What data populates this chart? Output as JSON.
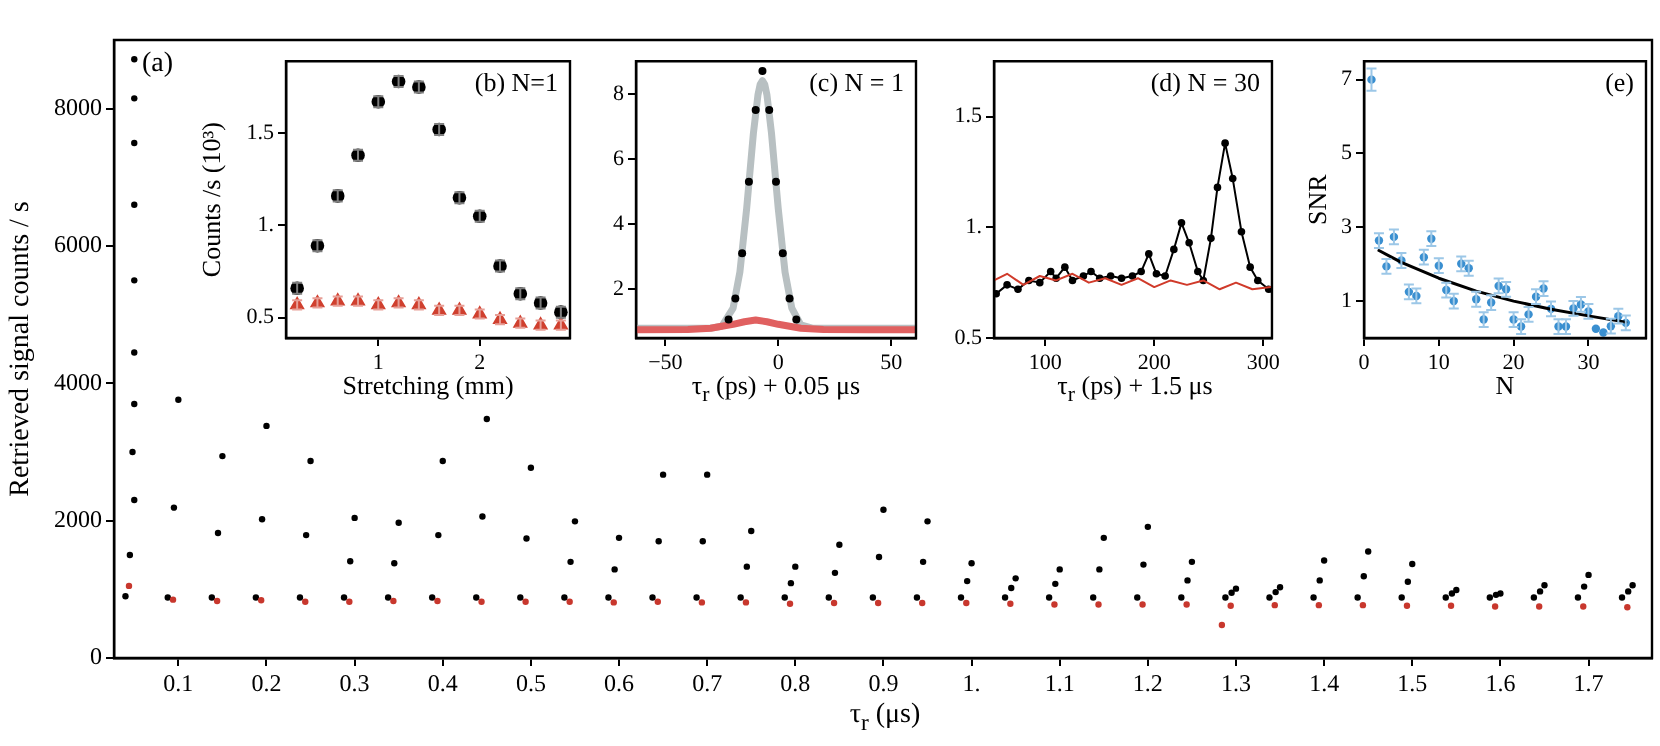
{
  "chart_data": [
    {
      "type": "scatter",
      "xlabel": "τ$_{r}$ (μs)",
      "ylabel": "Retrieved signal counts / s",
      "xlim": [
        0.027,
        1.772
      ],
      "ylim": [
        0,
        9000
      ],
      "xticks": [
        0.1,
        0.2,
        0.3,
        0.4,
        0.5,
        0.6,
        0.7,
        0.8,
        0.9,
        {
          "value": 1,
          "label": "1."
        },
        1.1,
        1.2,
        1.3,
        1.4,
        1.5,
        1.6,
        1.7
      ],
      "yticks": [
        0,
        2000,
        4000,
        6000,
        8000
      ],
      "annotations": [
        "(a)"
      ],
      "series": [
        {
          "color": "#000000",
          "x": [
            0.04,
            0.045,
            0.048,
            0.05,
            0.05,
            0.05,
            0.05,
            0.05,
            0.05,
            0.05,
            0.05,
            0.088,
            0.095,
            0.1,
            0.138,
            0.145,
            0.15,
            0.188,
            0.195,
            0.2,
            0.238,
            0.245,
            0.25,
            0.288,
            0.295,
            0.3,
            0.338,
            0.345,
            0.35,
            0.388,
            0.395,
            0.4,
            0.438,
            0.445,
            0.45,
            0.488,
            0.495,
            0.5,
            0.538,
            0.545,
            0.55,
            0.588,
            0.595,
            0.6,
            0.638,
            0.645,
            0.65,
            0.688,
            0.695,
            0.7,
            0.738,
            0.745,
            0.75,
            0.788,
            0.795,
            0.8,
            0.838,
            0.845,
            0.85,
            0.888,
            0.895,
            0.9,
            0.938,
            0.945,
            0.95,
            0.988,
            0.995,
            1.0,
            1.038,
            1.045,
            1.05,
            1.088,
            1.095,
            1.1,
            1.138,
            1.145,
            1.15,
            1.188,
            1.195,
            1.2,
            1.238,
            1.245,
            1.25,
            1.288,
            1.295,
            1.3,
            1.338,
            1.345,
            1.35,
            1.388,
            1.395,
            1.4,
            1.438,
            1.445,
            1.45,
            1.488,
            1.495,
            1.5,
            1.538,
            1.545,
            1.55,
            1.588,
            1.595,
            1.6,
            1.638,
            1.645,
            1.65,
            1.688,
            1.695,
            1.7,
            1.738,
            1.745,
            1.75
          ],
          "values": [
            900,
            1500,
            3000,
            8720,
            8150,
            7500,
            6600,
            5500,
            4450,
            3700,
            2300,
            880,
            2190,
            3760,
            880,
            1820,
            2940,
            880,
            2020,
            3380,
            880,
            1790,
            2870,
            880,
            1410,
            2040,
            880,
            1380,
            1970,
            880,
            1790,
            2870,
            880,
            2060,
            3480,
            880,
            1740,
            2770,
            880,
            1400,
            1990,
            880,
            1290,
            1750,
            880,
            1700,
            2670,
            880,
            1700,
            2670,
            880,
            1330,
            1850,
            880,
            1090,
            1330,
            880,
            1240,
            1650,
            880,
            1470,
            2160,
            880,
            1400,
            1990,
            880,
            1120,
            1380,
            880,
            1020,
            1160,
            880,
            1080,
            1290,
            880,
            1290,
            1750,
            880,
            1360,
            1910,
            880,
            1130,
            1400,
            880,
            950,
            1010,
            880,
            960,
            1030,
            880,
            1130,
            1420,
            880,
            1190,
            1550,
            880,
            1110,
            1370,
            880,
            940,
            990,
            880,
            920,
            940,
            880,
            970,
            1060,
            880,
            1040,
            1210,
            880,
            970,
            1060
          ]
        },
        {
          "color": "#c8372d",
          "x": [
            0.044,
            0.094,
            0.144,
            0.194,
            0.244,
            0.294,
            0.344,
            0.394,
            0.444,
            0.494,
            0.544,
            0.594,
            0.644,
            0.694,
            0.744,
            0.794,
            0.844,
            0.894,
            0.944,
            0.994,
            1.044,
            1.094,
            1.144,
            1.194,
            1.244,
            1.284,
            1.294,
            1.344,
            1.394,
            1.444,
            1.494,
            1.544,
            1.594,
            1.644,
            1.694,
            1.744
          ],
          "values": [
            1050,
            850,
            830,
            840,
            820,
            820,
            830,
            830,
            820,
            820,
            820,
            810,
            820,
            810,
            810,
            790,
            800,
            800,
            800,
            800,
            790,
            780,
            780,
            780,
            780,
            480,
            760,
            770,
            770,
            770,
            760,
            760,
            750,
            750,
            750,
            740
          ]
        }
      ]
    },
    {
      "type": "scatter",
      "xlabel": "Stretching (mm)",
      "ylabel": "Counts /s (10³)",
      "xlim": [
        0.09,
        2.89
      ],
      "ylim": [
        0.39,
        1.89
      ],
      "xticks": [
        1,
        2
      ],
      "yticks": [
        0.5,
        {
          "value": 1,
          "label": "1."
        },
        1.5
      ],
      "annotations": [
        "(b) N=1"
      ],
      "series": [
        {
          "color": "#000000",
          "marker": "circle",
          "x": [
            0.2,
            0.4,
            0.6,
            0.8,
            1.0,
            1.2,
            1.4,
            1.6,
            1.8,
            2.0,
            2.2,
            2.4,
            2.6,
            2.8
          ],
          "values": [
            0.66,
            0.89,
            1.16,
            1.38,
            1.67,
            1.78,
            1.75,
            1.52,
            1.15,
            1.05,
            0.78,
            0.63,
            0.58,
            0.53
          ],
          "errors": [
            0.03,
            0.03,
            0.03,
            0.03,
            0.03,
            0.03,
            0.03,
            0.03,
            0.03,
            0.03,
            0.03,
            0.03,
            0.03,
            0.03
          ]
        },
        {
          "color": "#d0402f",
          "marker": "triangle",
          "x": [
            0.2,
            0.4,
            0.6,
            0.8,
            1.0,
            1.2,
            1.4,
            1.6,
            1.8,
            2.0,
            2.2,
            2.4,
            2.6,
            2.8
          ],
          "values": [
            0.57,
            0.58,
            0.59,
            0.59,
            0.57,
            0.58,
            0.57,
            0.54,
            0.54,
            0.52,
            0.49,
            0.47,
            0.46,
            0.46
          ],
          "errors": [
            0.025,
            0.025,
            0.025,
            0.025,
            0.025,
            0.025,
            0.025,
            0.025,
            0.025,
            0.025,
            0.025,
            0.025,
            0.025,
            0.025
          ]
        }
      ]
    },
    {
      "type": "scatter",
      "xlabel": "τ$_{r}$ (ps) + 0.05 μs",
      "xlim": [
        -63,
        61
      ],
      "ylim": [
        0.5,
        9
      ],
      "xticks": [
        {
          "value": -50,
          "label": "−50"
        },
        0,
        50
      ],
      "yticks": [
        2,
        4,
        6,
        8
      ],
      "annotations": [
        "(c) N = 1"
      ],
      "series": [
        {
          "type": "line",
          "color": "#b8c0c2",
          "x": [
            -63,
            -30,
            -25,
            -20,
            -17,
            -14,
            -11,
            -9,
            -8,
            -7,
            -6,
            -5,
            -3,
            0,
            3,
            6,
            10,
            15,
            30,
            61
          ],
          "values": [
            0.8,
            0.8,
            0.86,
            1.42,
            2.52,
            4.47,
            6.79,
            7.96,
            8.29,
            8.4,
            8.29,
            7.96,
            6.79,
            4.47,
            2.52,
            1.42,
            0.9,
            0.8,
            0.8,
            0.8
          ]
        },
        {
          "type": "line",
          "color": "#e06060",
          "x": [
            -63,
            -40,
            -30,
            -20,
            -15,
            -10,
            -5,
            0,
            10,
            20,
            40,
            61
          ],
          "values": [
            0.75,
            0.76,
            0.8,
            0.92,
            1.0,
            1.05,
            1.0,
            0.92,
            0.8,
            0.76,
            0.75,
            0.75
          ]
        },
        {
          "color": "#000000",
          "x": [
            -22,
            -19,
            -16,
            -13,
            -10,
            -7,
            -4,
            -1,
            2,
            5,
            8
          ],
          "values": [
            1.07,
            1.71,
            3.1,
            5.3,
            7.5,
            8.7,
            7.5,
            5.3,
            3.1,
            1.71,
            1.07
          ]
        }
      ]
    },
    {
      "type": "line",
      "xlabel": "τ$_{r}$ (ps) + 1.5 μs",
      "xlim": [
        53,
        308
      ],
      "ylim": [
        0.5,
        1.75
      ],
      "xticks": [
        100,
        200,
        300
      ],
      "yticks": [
        0.5,
        {
          "value": 1,
          "label": "1."
        },
        1.5
      ],
      "annotations": [
        "(d) N = 30"
      ],
      "series": [
        {
          "color": "#000000",
          "marker": "circle",
          "x": [
            55,
            65,
            75,
            85,
            95,
            105,
            110,
            118,
            125,
            135,
            142,
            150,
            160,
            170,
            180,
            188,
            195,
            202,
            210,
            218,
            225,
            232,
            240,
            245,
            252,
            258,
            265,
            272,
            280,
            288,
            295,
            305
          ],
          "values": [
            0.7,
            0.74,
            0.72,
            0.76,
            0.75,
            0.8,
            0.77,
            0.82,
            0.76,
            0.78,
            0.8,
            0.77,
            0.78,
            0.77,
            0.78,
            0.8,
            0.88,
            0.79,
            0.78,
            0.9,
            1.02,
            0.93,
            0.8,
            0.76,
            0.95,
            1.18,
            1.38,
            1.22,
            0.98,
            0.82,
            0.76,
            0.72
          ]
        },
        {
          "color": "#d03a2a",
          "x": [
            53,
            65,
            80,
            95,
            110,
            125,
            140,
            155,
            170,
            185,
            200,
            215,
            230,
            245,
            260,
            275,
            290,
            307
          ],
          "values": [
            0.76,
            0.79,
            0.74,
            0.78,
            0.76,
            0.79,
            0.75,
            0.77,
            0.74,
            0.77,
            0.73,
            0.76,
            0.74,
            0.76,
            0.72,
            0.75,
            0.72,
            0.73
          ]
        }
      ]
    },
    {
      "type": "scatter",
      "xlabel": "N",
      "ylabel": "SNR",
      "xlim": [
        0,
        37.7
      ],
      "ylim": [
        0,
        7.5
      ],
      "xticks": [
        0,
        10,
        20,
        30
      ],
      "yticks": [
        1,
        3,
        5,
        7
      ],
      "annotations": [
        "(e)"
      ],
      "series": [
        {
          "color": "#3a8fd0",
          "marker": "circle",
          "x": [
            1,
            2,
            3,
            4,
            5,
            6,
            7,
            8,
            9,
            10,
            11,
            12,
            13,
            14,
            15,
            16,
            17,
            18,
            19,
            20,
            21,
            22,
            23,
            24,
            25,
            26,
            27,
            28,
            29,
            30,
            31,
            32,
            33,
            34,
            35
          ],
          "values": [
            7.0,
            2.64,
            1.94,
            2.74,
            2.1,
            1.25,
            1.14,
            2.19,
            2.69,
            1.96,
            1.3,
            1.0,
            2.01,
            1.89,
            1.05,
            0.5,
            0.96,
            1.41,
            1.32,
            0.5,
            0.31,
            0.64,
            1.12,
            1.34,
            0.79,
            0.31,
            0.31,
            0.8,
            0.91,
            0.72,
            0.25,
            0.15,
            0.32,
            0.59,
            0.41
          ],
          "errors": [
            0.3,
            0.2,
            0.2,
            0.2,
            0.2,
            0.2,
            0.2,
            0.2,
            0.2,
            0.2,
            0.2,
            0.2,
            0.2,
            0.2,
            0.2,
            0.2,
            0.2,
            0.2,
            0.2,
            0.2,
            0.2,
            0.2,
            0.2,
            0.2,
            0.2,
            0.2,
            0.2,
            0.2,
            0.2,
            0.2,
            null,
            null,
            0.2,
            0.2,
            0.2
          ]
        },
        {
          "type": "line",
          "color": "#000000",
          "x": [
            2,
            5,
            10,
            15,
            20,
            25,
            30,
            35
          ],
          "values": [
            2.37,
            2.05,
            1.62,
            1.27,
            1.0,
            0.78,
            0.6,
            0.43
          ]
        }
      ]
    }
  ]
}
